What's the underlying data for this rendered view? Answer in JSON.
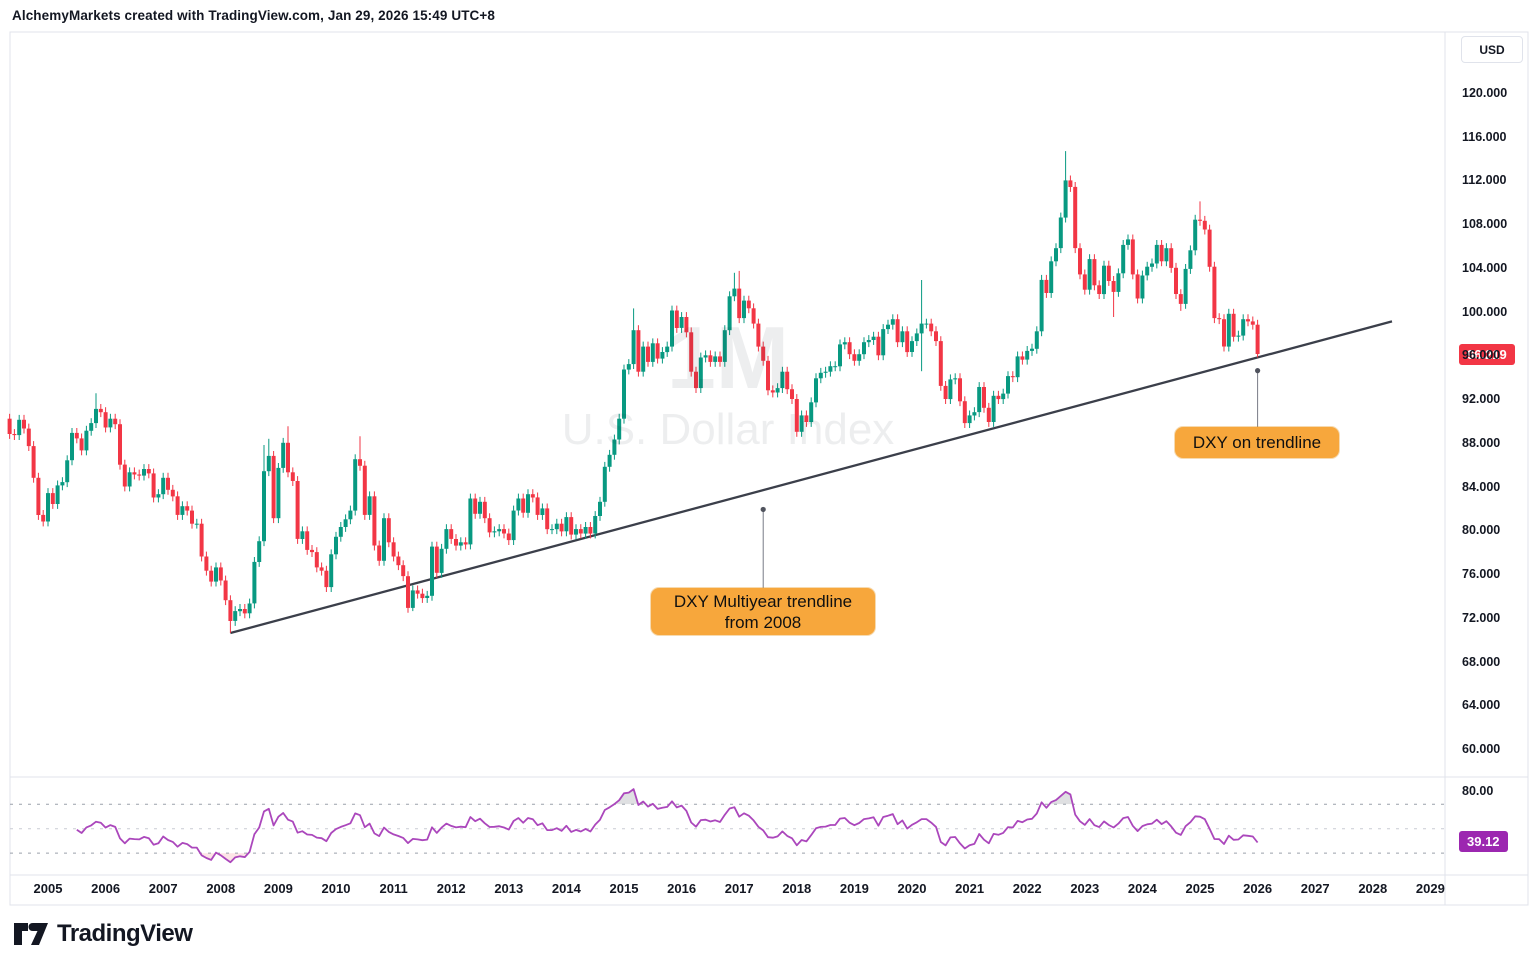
{
  "header": {
    "title": "AlchemyMarkets created with TradingView.com, Jan 29, 2026 15:49 UTC+8"
  },
  "currency_button": {
    "label": "USD"
  },
  "watermark": {
    "line1": "1M",
    "line2": "U.S. Dollar Index"
  },
  "price_axis": {
    "tick_labels": [
      "120.000",
      "116.000",
      "112.000",
      "108.000",
      "104.000",
      "100.000",
      "96.000",
      "92.000",
      "88.000",
      "84.000",
      "80.000",
      "76.000",
      "72.000",
      "68.000",
      "64.000",
      "60.000"
    ],
    "last_price_label": "96.219",
    "last_price_color": "#F23645"
  },
  "time_axis": {
    "years": [
      "2005",
      "2006",
      "2007",
      "2008",
      "2009",
      "2010",
      "2011",
      "2012",
      "2013",
      "2014",
      "2015",
      "2016",
      "2017",
      "2018",
      "2019",
      "2020",
      "2021",
      "2022",
      "2023",
      "2024",
      "2025",
      "2026",
      "2027",
      "2028",
      "2029"
    ]
  },
  "rsi_pane": {
    "tick_label": "80.00",
    "tick_value": 80,
    "value_label": "39.12",
    "value": 39.12,
    "levels": [
      70,
      50,
      30
    ],
    "line_color": "#AB47BC",
    "badge_color": "#9C27B0",
    "oversold_fill": "rgba(242,54,69,0.13)",
    "overbought_fill": "rgba(110,113,125,0.22)"
  },
  "callouts": [
    {
      "lines": [
        "DXY Multiyear trendline",
        "from 2008"
      ],
      "anchor_month_index": 157,
      "anchor_price": 82.0
    },
    {
      "lines": [
        "DXY on trendline"
      ],
      "anchor_month_index": 260,
      "anchor_price": 94.7
    }
  ],
  "annotation_color": "#F7A73C",
  "logo": {
    "text": "TradingView"
  },
  "chart_data": {
    "type": "candlestick",
    "symbol": "U.S. Dollar Index",
    "currency": "USD",
    "timeframe": "1M",
    "start_month": "2004-05",
    "end_month": "2026-01",
    "y_axis": {
      "min": 60,
      "max": 120,
      "step": 4
    },
    "colors": {
      "up": "#089981",
      "down": "#F23645",
      "trendline": "#3b3f4a"
    },
    "first_open": 90.3,
    "monthly_closes": [
      88.9,
      88.8,
      90.2,
      89.4,
      87.8,
      84.9,
      81.5,
      80.9,
      83.5,
      82.5,
      84.2,
      84.5,
      86.5,
      89.0,
      88.5,
      87.4,
      89.2,
      89.9,
      91.2,
      90.9,
      89.5,
      90.3,
      89.8,
      86.1,
      84.1,
      85.4,
      85.2,
      85.1,
      85.7,
      85.3,
      83.1,
      83.4,
      84.9,
      83.8,
      83.2,
      81.5,
      82.3,
      81.9,
      80.7,
      80.7,
      77.7,
      76.4,
      75.4,
      76.7,
      75.5,
      73.7,
      71.8,
      72.7,
      72.9,
      72.5,
      73.4,
      77.2,
      79.1,
      85.5,
      86.9,
      81.2,
      85.8,
      88.1,
      85.4,
      84.6,
      79.3,
      80.0,
      78.3,
      78.1,
      76.7,
      76.4,
      74.9,
      77.9,
      79.5,
      80.4,
      81.1,
      81.9,
      86.6,
      86.0,
      81.5,
      83.2,
      78.7,
      77.3,
      81.2,
      79.0,
      77.7,
      76.9,
      75.9,
      73.0,
      74.6,
      74.3,
      73.9,
      74.1,
      78.6,
      76.2,
      78.4,
      80.2,
      79.3,
      78.7,
      79.0,
      78.8,
      83.0,
      81.6,
      82.7,
      81.2,
      79.9,
      80.0,
      80.2,
      79.8,
      79.2,
      81.9,
      83.0,
      81.7,
      83.4,
      83.1,
      81.5,
      82.1,
      80.2,
      80.2,
      80.7,
      80.0,
      81.3,
      79.7,
      80.2,
      79.8,
      80.4,
      79.8,
      81.4,
      82.7,
      85.9,
      87.0,
      88.4,
      90.3,
      94.8,
      95.3,
      98.4,
      94.6,
      96.9,
      95.5,
      97.2,
      95.8,
      96.4,
      96.9,
      100.2,
      98.6,
      99.6,
      98.2,
      94.6,
      93.1,
      95.9,
      96.1,
      95.5,
      96.0,
      95.5,
      98.4,
      101.5,
      102.2,
      99.5,
      101.1,
      100.4,
      99.0,
      96.9,
      95.6,
      92.9,
      92.7,
      93.1,
      94.6,
      93.0,
      92.1,
      89.1,
      90.6,
      90.0,
      91.8,
      94.0,
      94.5,
      94.6,
      95.1,
      95.1,
      97.1,
      97.3,
      96.2,
      95.6,
      96.2,
      97.3,
      97.5,
      97.8,
      96.1,
      98.5,
      98.9,
      99.4,
      97.3,
      98.3,
      96.4,
      97.4,
      98.1,
      99.0,
      99.0,
      98.3,
      97.4,
      93.3,
      92.1,
      93.9,
      94.0,
      91.9,
      89.9,
      90.6,
      90.9,
      93.2,
      91.3,
      90.0,
      92.4,
      92.1,
      92.6,
      94.2,
      94.1,
      96.0,
      95.7,
      96.5,
      96.7,
      98.3,
      103.0,
      101.8,
      104.7,
      105.9,
      108.7,
      112.1,
      111.5,
      105.9,
      103.5,
      102.1,
      104.9,
      102.5,
      101.7,
      104.3,
      102.9,
      101.9,
      103.6,
      106.2,
      106.7,
      103.5,
      101.3,
      103.4,
      104.2,
      104.5,
      106.2,
      104.7,
      105.9,
      104.1,
      101.7,
      100.8,
      104.0,
      105.7,
      108.5,
      108.4,
      107.6,
      104.2,
      99.5,
      99.4,
      96.9,
      99.9,
      97.8,
      97.9,
      99.4,
      99.2,
      98.9,
      96.219
    ],
    "wick_overrides": {
      "18": {
        "high": 92.63
      },
      "46": {
        "low": 70.7
      },
      "53": {
        "high": 87.9
      },
      "54": {
        "high": 88.46
      },
      "58": {
        "high": 89.62
      },
      "73": {
        "high": 88.7
      },
      "84": {
        "low": 72.7
      },
      "130": {
        "high": 100.39
      },
      "151": {
        "high": 103.65
      },
      "152": {
        "high": 103.82
      },
      "190": {
        "high": 102.99,
        "low": 94.65
      },
      "220": {
        "high": 114.78
      },
      "230": {
        "low": 99.6
      },
      "244": {
        "low": 100.16
      },
      "248": {
        "high": 110.18
      },
      "260": {
        "low": 95.9
      }
    },
    "last_close": 96.219,
    "rsi_period": 14,
    "rsi_last": 39.12,
    "trendline": {
      "label": "DXY Multiyear trendline from 2008",
      "start": {
        "month_index": 46,
        "price": 70.7
      },
      "end": {
        "month_index": 288,
        "price": 99.2
      }
    }
  }
}
